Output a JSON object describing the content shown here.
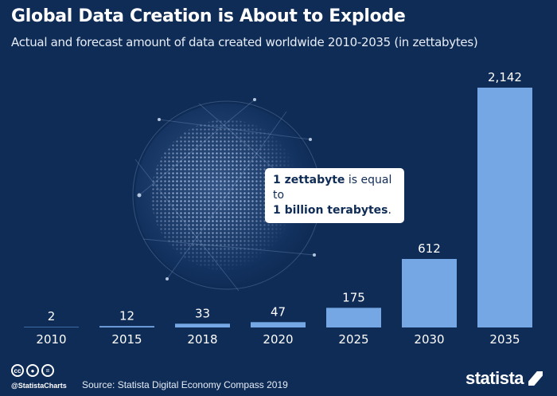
{
  "title": "Global Data Creation is About to Explode",
  "subtitle": "Actual and forecast amount of data created worldwide 2010-2035 (in zettabytes)",
  "callout": {
    "bold1": "1 zettabyte",
    "text1": " is equal to",
    "bold2": "1 billion terabytes",
    "text2": "."
  },
  "footer": {
    "handle": "@StatistaCharts",
    "source": "Source: Statista Digital Economy Compass 2019",
    "logo": "statista",
    "license_icons": [
      "cc-icon",
      "by-icon",
      "nd-icon"
    ],
    "cc_text": "cc",
    "by_text": "●",
    "nd_text": "="
  },
  "colors": {
    "background": "#0f2c56",
    "bar": "#74a7e4"
  },
  "chart_data": {
    "type": "bar",
    "title": "Global Data Creation is About to Explode",
    "subtitle": "Actual and forecast amount of data created worldwide 2010-2035 (in zettabytes)",
    "categories": [
      "2010",
      "2015",
      "2018",
      "2020",
      "2025",
      "2030",
      "2035"
    ],
    "values": [
      2,
      12,
      33,
      47,
      175,
      612,
      2142
    ],
    "value_labels": [
      "2",
      "12",
      "33",
      "47",
      "175",
      "612",
      "2,142"
    ],
    "ylim": [
      0,
      2142
    ],
    "grid": false,
    "unit": "zettabytes"
  }
}
